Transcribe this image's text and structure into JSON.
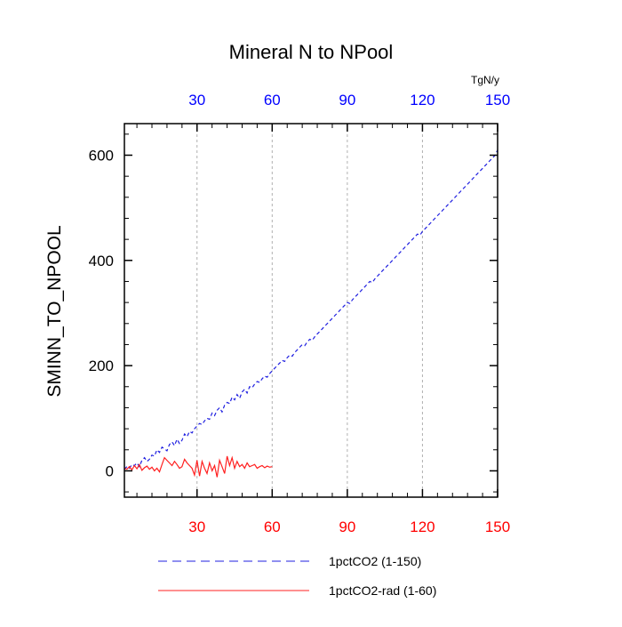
{
  "colors": {
    "series1": "#1f1fe0",
    "series2": "#ff2020",
    "top_tick_color": "#0000ff",
    "bottom_tick_color": "#ff0000",
    "grid": "#b0b0b0"
  },
  "chart_data": {
    "type": "line",
    "title": "Mineral N to NPool",
    "ylabel": "SMINN_TO_NPOOL",
    "unit_label": "TgN/y",
    "xlim": [
      1,
      150
    ],
    "ylim": [
      -50,
      660
    ],
    "yticks": [
      0,
      200,
      400,
      600
    ],
    "xticks_bottom": [
      30,
      60,
      90,
      120,
      150
    ],
    "xticks_top": [
      30,
      60,
      90,
      120,
      150
    ],
    "grid": "vertical dashed at top-axis ticks",
    "legend_position": "bottom",
    "series": [
      {
        "name": "1pctCO2 (1-150)",
        "style": "dashed",
        "x_start": 1,
        "values": [
          3,
          8,
          5,
          12,
          10,
          15,
          8,
          20,
          25,
          18,
          22,
          30,
          28,
          40,
          35,
          45,
          42,
          38,
          50,
          55,
          48,
          60,
          52,
          58,
          70,
          65,
          75,
          72,
          80,
          85,
          90,
          88,
          95,
          100,
          98,
          110,
          105,
          115,
          120,
          112,
          125,
          130,
          128,
          140,
          135,
          145,
          138,
          150,
          155,
          148,
          160,
          158,
          165,
          170,
          168,
          175,
          180,
          178,
          185,
          190,
          195,
          200,
          205,
          210,
          208,
          215,
          220,
          218,
          225,
          230,
          235,
          240,
          238,
          245,
          250,
          248,
          255,
          260,
          265,
          270,
          275,
          280,
          285,
          290,
          295,
          300,
          305,
          310,
          315,
          320,
          318,
          325,
          330,
          335,
          340,
          345,
          350,
          355,
          360,
          358,
          365,
          370,
          375,
          380,
          385,
          390,
          395,
          400,
          405,
          410,
          415,
          420,
          425,
          430,
          435,
          440,
          445,
          450,
          448,
          455,
          460,
          465,
          470,
          475,
          480,
          485,
          490,
          495,
          500,
          505,
          510,
          515,
          520,
          525,
          530,
          535,
          540,
          545,
          550,
          555,
          560,
          565,
          570,
          575,
          580,
          585,
          590,
          595,
          600,
          610
        ]
      },
      {
        "name": "1pctCO2-rad (1-60)",
        "style": "solid",
        "x_start": 1,
        "values": [
          5,
          3,
          8,
          2,
          10,
          4,
          12,
          1,
          6,
          9,
          3,
          7,
          0,
          5,
          -2,
          12,
          25,
          20,
          15,
          10,
          18,
          12,
          5,
          8,
          22,
          15,
          10,
          5,
          -8,
          20,
          -10,
          18,
          5,
          -5,
          15,
          0,
          10,
          -12,
          20,
          8,
          -5,
          28,
          10,
          25,
          5,
          18,
          8,
          12,
          5,
          15,
          8,
          10,
          12,
          5,
          8,
          10,
          6,
          9,
          7,
          8
        ]
      }
    ]
  }
}
